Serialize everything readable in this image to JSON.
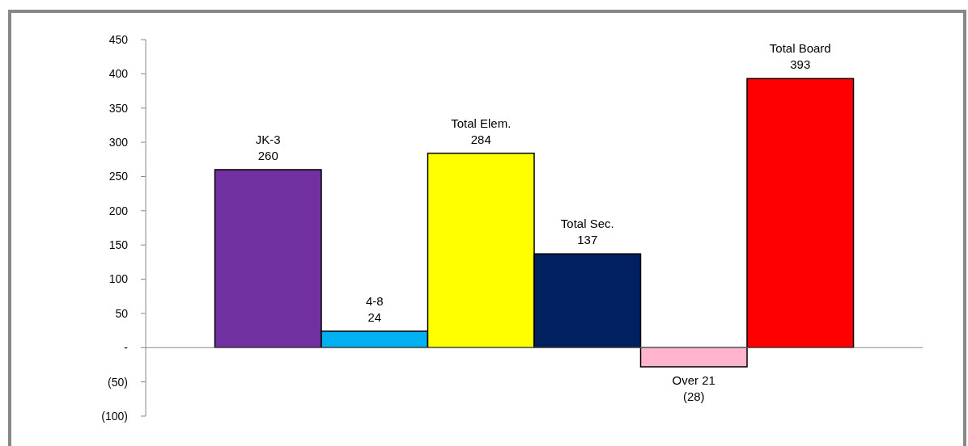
{
  "chart_data": {
    "type": "bar",
    "categories": [
      null,
      null,
      null,
      null,
      null,
      null
    ],
    "values": [
      260,
      24,
      284,
      137,
      -28,
      393
    ],
    "value_labels": [
      "260",
      "24",
      "284",
      "137",
      "(28)",
      "393"
    ],
    "annotations": [
      "JK-3",
      "4-8",
      "Total Elem.",
      "Total Sec.",
      "Over 21",
      "Total Board"
    ],
    "colors": [
      "#7030a0",
      "#00b0f0",
      "#ffff00",
      "#002060",
      "#ffb3cc",
      "#ff0000"
    ],
    "ylim": [
      -100,
      450
    ],
    "yticks": [
      {
        "value": -100,
        "label": "(100)"
      },
      {
        "value": -50,
        "label": "(50)"
      },
      {
        "value": 0,
        "label": "-"
      },
      50,
      100,
      150,
      200,
      250,
      300,
      350,
      400,
      450
    ],
    "ref_lines": [
      {
        "axis": "y",
        "value": 0,
        "color": "#888888"
      }
    ],
    "grid": false
  }
}
